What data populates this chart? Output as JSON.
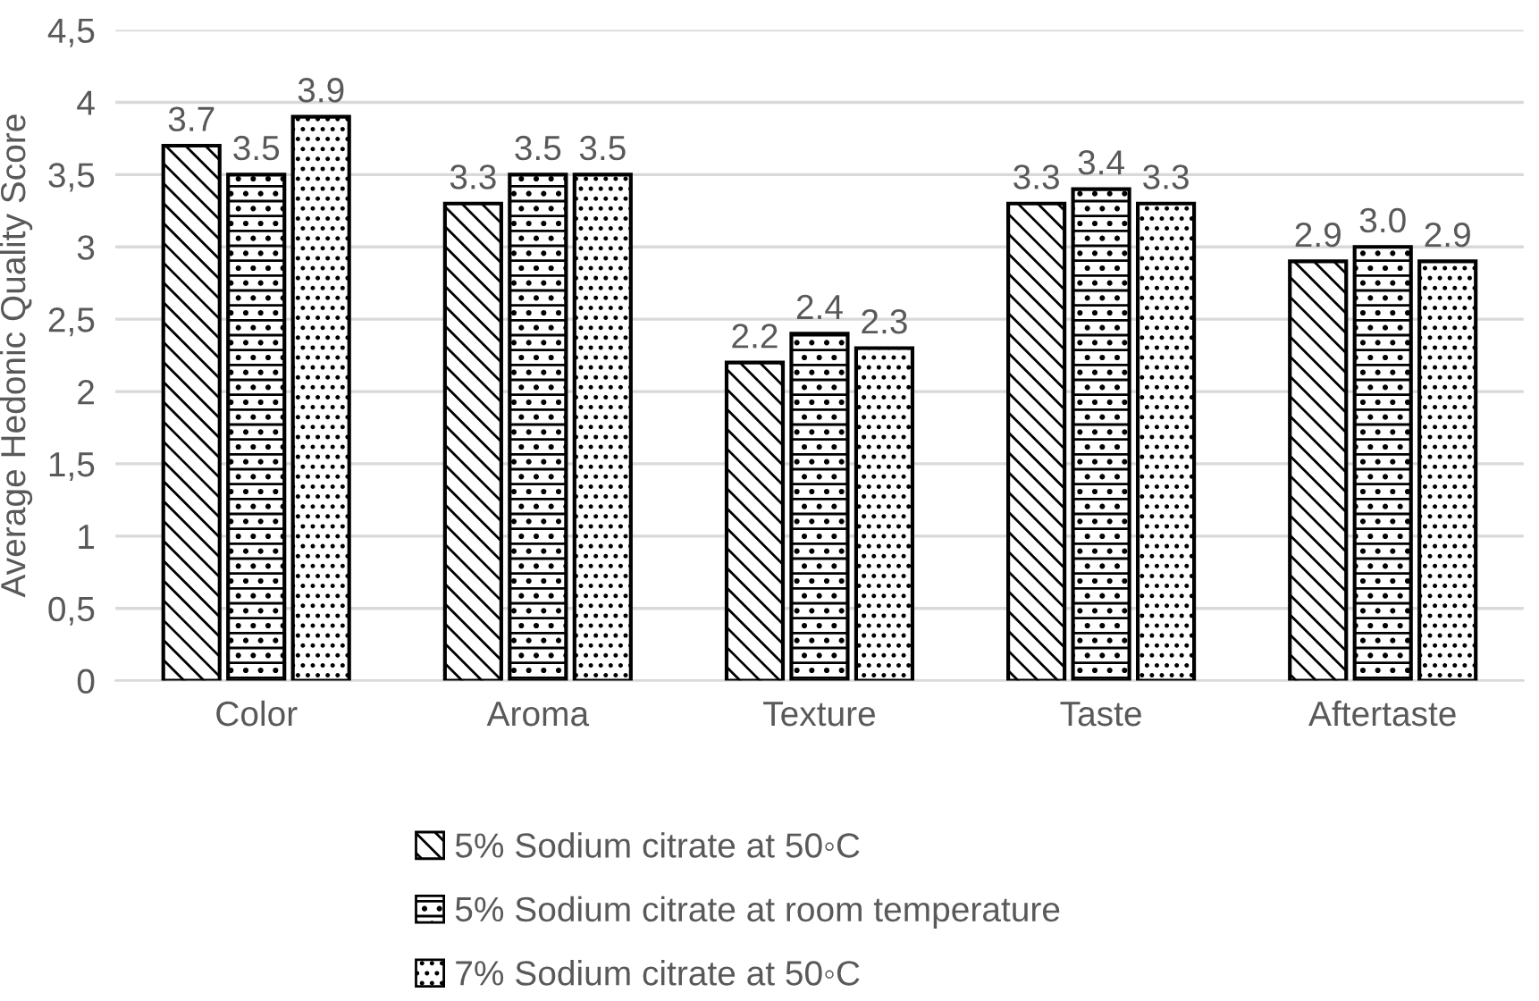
{
  "chart_data": {
    "type": "bar",
    "ylabel": "Average Hedonic Quality Score",
    "categories": [
      "Color",
      "Aroma",
      "Texture",
      "Taste",
      "Aftertaste"
    ],
    "series": [
      {
        "name": "5% Sodium citrate at 50◦C",
        "color": "#000000",
        "values": [
          3.7,
          3.3,
          2.2,
          3.3,
          2.9
        ],
        "value_labels": [
          "3.7",
          "3.3",
          "2.2",
          "3.3",
          "2.9"
        ]
      },
      {
        "name": "5% Sodium citrate at room temperature",
        "color": "#000000",
        "values": [
          3.5,
          3.5,
          2.4,
          3.4,
          3.0
        ],
        "value_labels": [
          "3.5",
          "3.5",
          "2.4",
          "3.4",
          "3.0"
        ]
      },
      {
        "name": "7% Sodium citrate at 50◦C",
        "color": "#000000",
        "values": [
          3.9,
          3.5,
          2.3,
          3.3,
          2.9
        ],
        "value_labels": [
          "3.9",
          "3.5",
          "2.3",
          "3.3",
          "2.9"
        ]
      }
    ],
    "ylim": [
      0,
      4.5
    ],
    "yticks": [
      0,
      {
        "value": 0.5,
        "label": "0,5"
      },
      1,
      {
        "value": 1.5,
        "label": "1,5"
      },
      2,
      {
        "value": 2.5,
        "label": "2,5"
      },
      3,
      {
        "value": 3.5,
        "label": "3,5"
      },
      4,
      {
        "value": 4.5,
        "label": "4,5"
      }
    ],
    "grid": "y",
    "legend": "bottom"
  }
}
